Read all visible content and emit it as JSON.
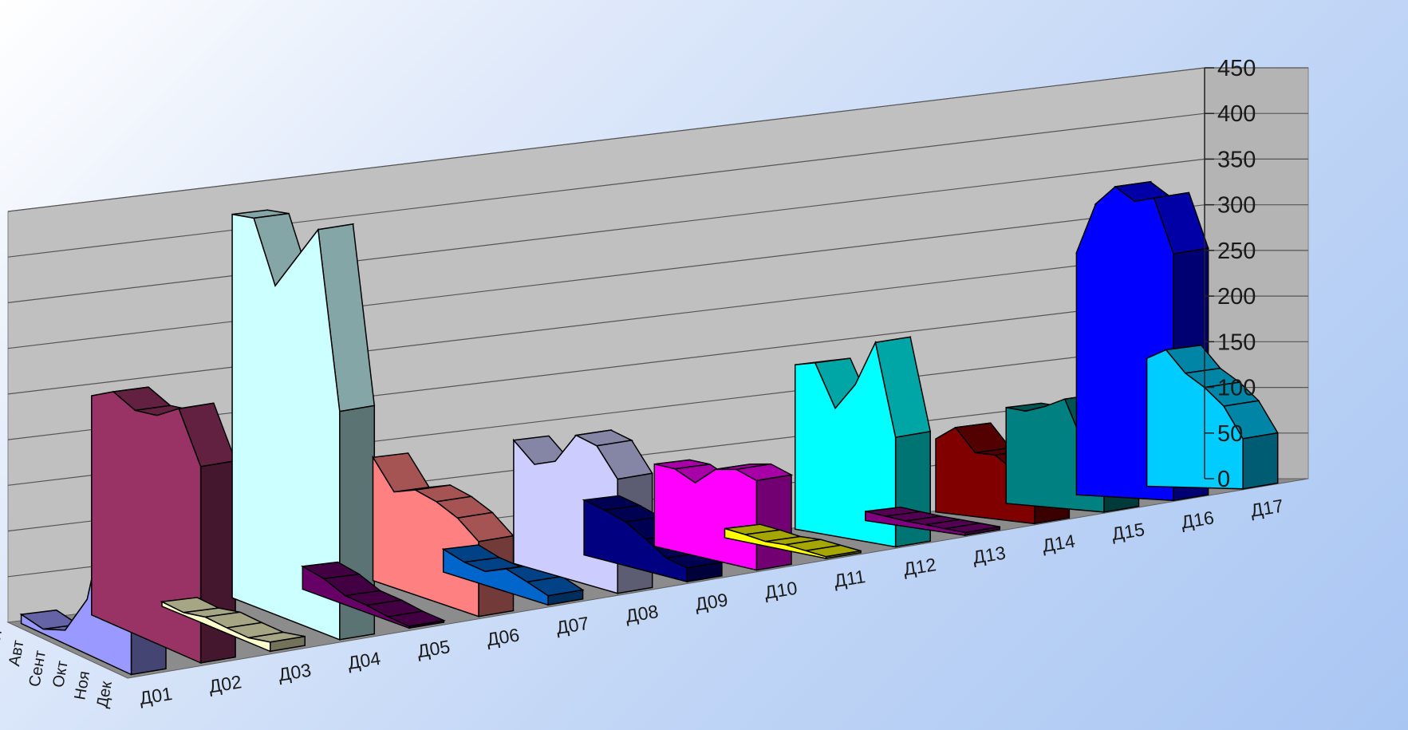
{
  "chart_data": {
    "type": "area",
    "subtype": "3d-area",
    "categories": [
      "Д01",
      "Д02",
      "Д03",
      "Д04",
      "Д05",
      "Д06",
      "Д07",
      "Д08",
      "Д09",
      "Д10",
      "Д11",
      "Д12",
      "Д13",
      "Д14",
      "Д15",
      "Д16",
      "Д17"
    ],
    "series": [
      {
        "name": "Июл",
        "values": [
          0,
          0,
          0,
          0,
          0,
          0,
          0,
          0,
          0,
          0,
          0,
          0,
          0,
          0,
          0,
          0,
          0
        ]
      },
      {
        "name": "Авт",
        "values": [
          0,
          0,
          0,
          0,
          0,
          0,
          0,
          0,
          0,
          0,
          0,
          0,
          0,
          0,
          0,
          0,
          0
        ]
      },
      {
        "name": "Сент",
        "values": [
          0,
          0,
          0,
          0,
          0,
          0,
          0,
          0,
          0,
          0,
          0,
          0,
          0,
          0,
          0,
          0,
          0
        ]
      },
      {
        "name": "Окт",
        "values": [
          0,
          0,
          0,
          0,
          0,
          0,
          0,
          0,
          0,
          0,
          0,
          0,
          0,
          0,
          0,
          0,
          0
        ]
      },
      {
        "name": "Ноя",
        "values": [
          0,
          0,
          0,
          0,
          0,
          0,
          0,
          0,
          0,
          0,
          0,
          0,
          0,
          0,
          0,
          0,
          0
        ]
      },
      {
        "name": "Дек",
        "values": [
          0,
          0,
          0,
          0,
          0,
          0,
          0,
          0,
          0,
          0,
          0,
          0,
          0,
          0,
          0,
          0,
          0
        ]
      }
    ],
    "category_series": [
      {
        "category": "Д01",
        "color": "#9999ff",
        "values": [
          10,
          5,
          15,
          60,
          180,
          180
        ]
      },
      {
        "category": "Д02",
        "color": "#993366",
        "values": [
          240,
          255,
          245,
          250,
          268,
          215
        ]
      },
      {
        "category": "Д03",
        "color": "#ffffcc",
        "values": [
          5,
          3,
          8,
          6,
          5,
          10
        ]
      },
      {
        "category": "Д04",
        "color": "#ccffff",
        "values": [
          420,
          425,
          360,
          400,
          440,
          250
        ]
      },
      {
        "category": "Д05",
        "color": "#660066",
        "values": [
          25,
          20,
          10,
          8,
          4,
          2
        ]
      },
      {
        "category": "Д06",
        "color": "#ff8080",
        "values": [
          135,
          105,
          115,
          110,
          100,
          82
        ]
      },
      {
        "category": "Д07",
        "color": "#0066cc",
        "values": [
          25,
          18,
          15,
          25,
          18,
          10
        ]
      },
      {
        "category": "Д08",
        "color": "#ccccff",
        "values": [
          135,
          115,
          125,
          160,
          155,
          125
        ]
      },
      {
        "category": "Д09",
        "color": "#000080",
        "values": [
          60,
          55,
          48,
          35,
          20,
          15
        ]
      },
      {
        "category": "Д10",
        "color": "#ff00ff",
        "values": [
          90,
          90,
          80,
          100,
          105,
          98
        ]
      },
      {
        "category": "Д11",
        "color": "#ffff00",
        "values": [
          10,
          8,
          5,
          6,
          4,
          2
        ]
      },
      {
        "category": "Д12",
        "color": "#00ffff",
        "values": [
          180,
          186,
          140,
          170,
          220,
          120
        ]
      },
      {
        "category": "Д13",
        "color": "#800080",
        "values": [
          10,
          8,
          6,
          5,
          4,
          3
        ]
      },
      {
        "category": "Д14",
        "color": "#800000",
        "values": [
          80,
          95,
          70,
          70,
          55,
          35
        ]
      },
      {
        "category": "Д15",
        "color": "#008080",
        "values": [
          105,
          103,
          110,
          120,
          70,
          68
        ]
      },
      {
        "category": "Д16",
        "color": "#0000ff",
        "values": [
          265,
          320,
          340,
          325,
          330,
          270
        ]
      },
      {
        "category": "Д17",
        "color": "#00ccff",
        "values": [
          140,
          150,
          125,
          110,
          90,
          55
        ]
      }
    ],
    "zlabels": [
      "Июл",
      "Авт",
      "Сент",
      "Окт",
      "Ноя",
      "Дек"
    ],
    "ylim": [
      0,
      450
    ],
    "yticks": [
      0,
      50,
      100,
      150,
      200,
      250,
      300,
      350,
      400,
      450
    ],
    "grid": true,
    "wall_color": "#c0c0c0",
    "floor_color": "#8c8c8c",
    "title": "",
    "xlabel": "",
    "ylabel": ""
  }
}
